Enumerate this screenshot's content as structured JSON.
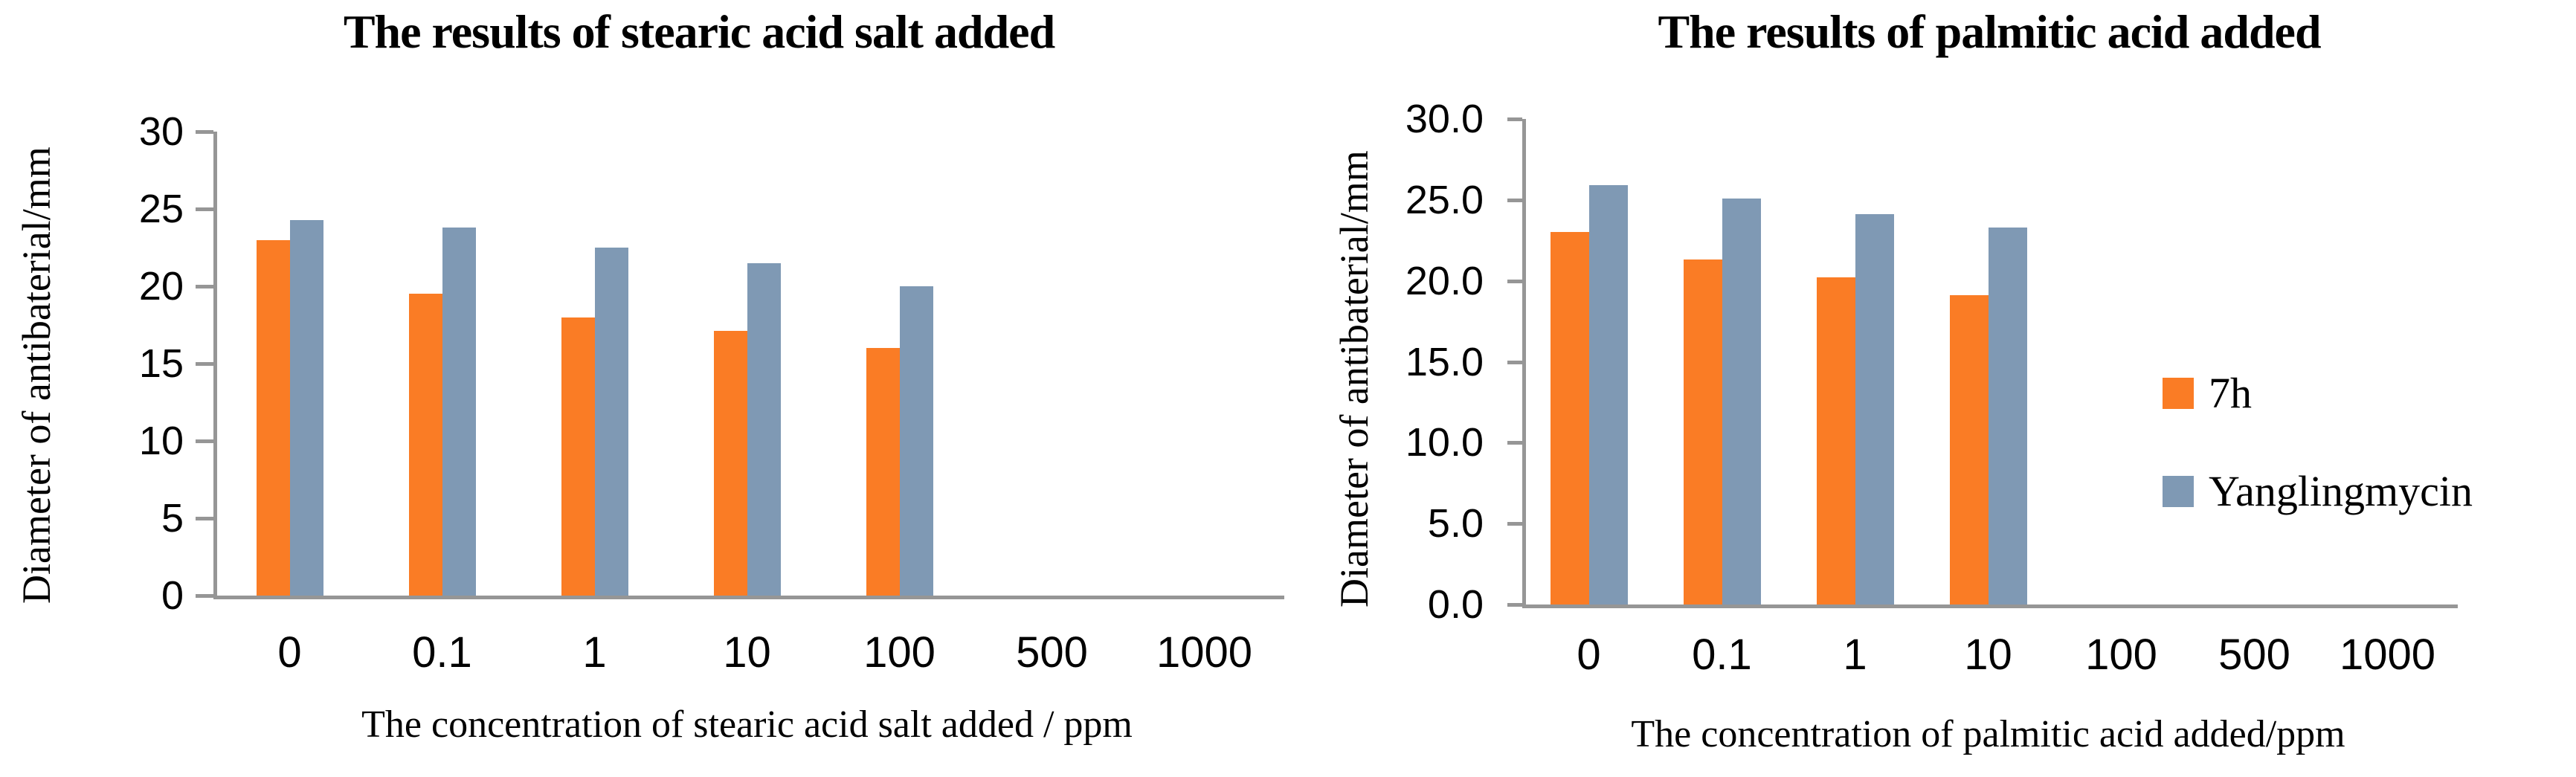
{
  "page": {
    "background": "#ffffff",
    "axis_color": "#969696",
    "text_color": "#000000"
  },
  "chart_data": [
    {
      "type": "bar",
      "title": "The results of stearic acid salt added",
      "ylabel": "Diameter of antibaterial/mm",
      "xlabel": "The concentration of stearic acid salt added / ppm",
      "categories": [
        "0",
        "0.1",
        "1",
        "10",
        "100",
        "500",
        "1000"
      ],
      "ylim": [
        0,
        30
      ],
      "ytick_step": 5,
      "ytick_labels": [
        "30",
        "25",
        "20",
        "15",
        "10",
        "5",
        "0"
      ],
      "grid": false,
      "legend_position": "none",
      "series": [
        {
          "name": "7h",
          "color": "#FA7C25",
          "values": [
            23.0,
            19.5,
            18.0,
            17.1,
            16.0,
            null,
            null
          ]
        },
        {
          "name": "Yanglingmycin",
          "color": "#7F99B4",
          "values": [
            24.3,
            23.8,
            22.5,
            21.5,
            20.0,
            null,
            null
          ]
        }
      ]
    },
    {
      "type": "bar",
      "title": "The results of palmitic acid added",
      "ylabel": "Diameter of antibaterial/mm",
      "xlabel": "The concentration of palmitic acid added/ppm",
      "categories": [
        "0",
        "0.1",
        "1",
        "10",
        "100",
        "500",
        "1000"
      ],
      "ylim": [
        0,
        30
      ],
      "ytick_step": 5,
      "ytick_labels": [
        "30.0",
        "25.0",
        "20.0",
        "15.0",
        "10.0",
        "5.0",
        "0.0"
      ],
      "grid": false,
      "legend_position": "right",
      "legend": {
        "items": [
          {
            "label": "7h",
            "color": "#FA7C25"
          },
          {
            "label": "Yanglingmycin",
            "color": "#7F99B4"
          }
        ]
      },
      "series": [
        {
          "name": "7h",
          "color": "#FA7C25",
          "values": [
            23.0,
            21.3,
            20.2,
            19.1,
            null,
            null,
            null
          ]
        },
        {
          "name": "Yanglingmycin",
          "color": "#7F99B4",
          "values": [
            25.9,
            25.1,
            24.1,
            23.3,
            null,
            null,
            null
          ]
        }
      ]
    }
  ]
}
